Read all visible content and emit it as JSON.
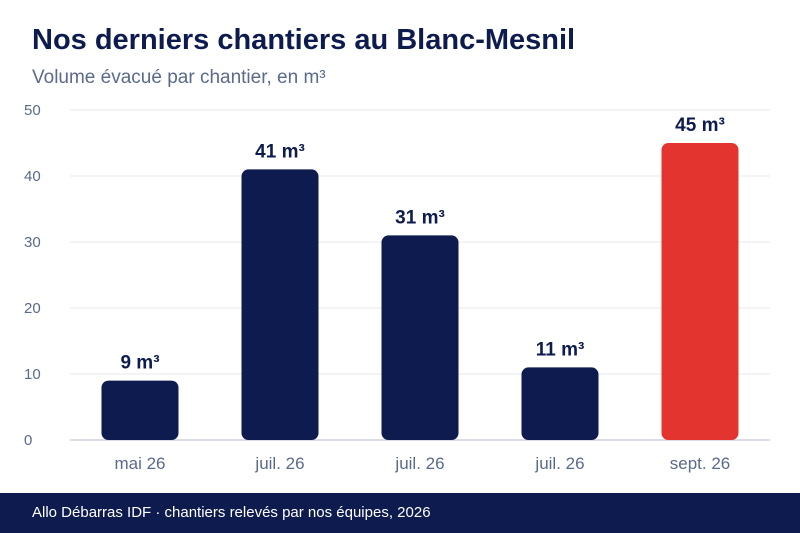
{
  "header": {
    "title": "Nos derniers chantiers au Blanc-Mesnil",
    "subtitle": "Volume évacué par chantier, en m³"
  },
  "footer": {
    "text": "Allo Débarras IDF · chantiers relevés par nos équipes, 2026"
  },
  "colors": {
    "bar": "#0d1b4e",
    "highlight": "#e3342f",
    "tick": "#5a6a8a",
    "grid": "#e8e8ee"
  },
  "chart_data": {
    "type": "bar",
    "title": "Nos derniers chantiers au Blanc-Mesnil",
    "subtitle": "Volume évacué par chantier, en m³",
    "categories": [
      "mai 26",
      "juil. 26",
      "juil. 26",
      "juil. 26",
      "sept. 26"
    ],
    "values": [
      9,
      41,
      31,
      11,
      45
    ],
    "data_labels": [
      "9 m³",
      "41 m³",
      "31 m³",
      "11 m³",
      "45 m³"
    ],
    "highlight_index": 4,
    "ylim": [
      0,
      50
    ],
    "yticks": [
      0,
      10,
      20,
      30,
      40,
      50
    ],
    "xlabel": "",
    "ylabel": "",
    "grid": true,
    "legend": false
  }
}
